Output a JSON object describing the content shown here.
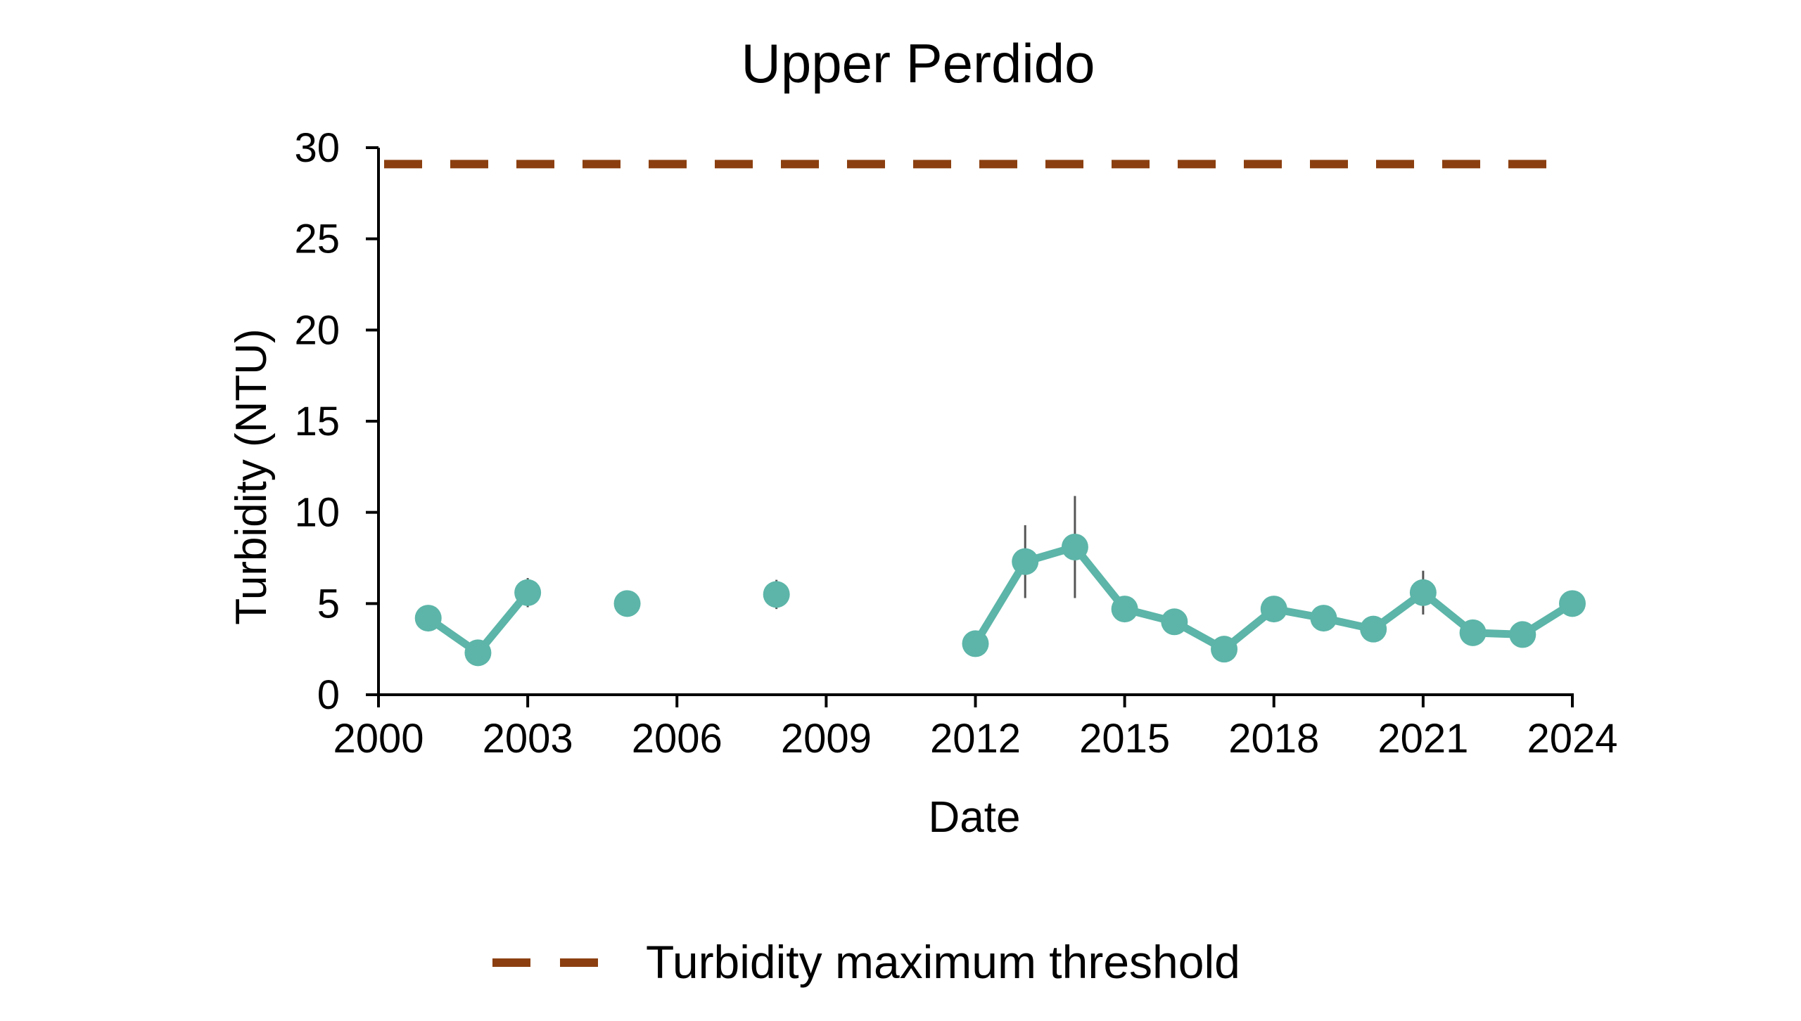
{
  "chart_data": {
    "type": "line",
    "title": "Upper Perdido",
    "xlabel": "Date",
    "ylabel": "Turbidity (NTU)",
    "xlim": [
      2000,
      2024
    ],
    "ylim": [
      0,
      30
    ],
    "x_ticks": [
      2000,
      2003,
      2006,
      2009,
      2012,
      2015,
      2018,
      2021,
      2024
    ],
    "y_ticks": [
      0,
      5,
      10,
      15,
      20,
      25,
      30
    ],
    "grid": false,
    "legend_position": "bottom",
    "series": [
      {
        "color": "#5cb5a8",
        "marker": "circle",
        "x": [
          2001,
          2002,
          2003,
          2005,
          2008,
          2012,
          2013,
          2014,
          2015,
          2016,
          2017,
          2018,
          2019,
          2020,
          2021,
          2022,
          2023,
          2024
        ],
        "y": [
          4.2,
          2.3,
          5.6,
          5.0,
          5.5,
          2.8,
          7.3,
          8.1,
          4.7,
          4.0,
          2.5,
          4.7,
          4.2,
          3.6,
          5.6,
          3.4,
          3.3,
          5.0
        ],
        "y_err": [
          0.2,
          0.2,
          0.8,
          0.2,
          0.8,
          0.2,
          2.0,
          2.8,
          0.3,
          0.3,
          0.2,
          0.3,
          0.2,
          0.2,
          1.2,
          0.2,
          0.2,
          0.2
        ],
        "connected_segments": [
          [
            2001,
            2003
          ],
          [
            2012,
            2024
          ]
        ]
      },
      {
        "name": "Turbidity maximum threshold",
        "color": "#8b3f10",
        "style": "dashed",
        "x": [
          2000,
          2024
        ],
        "y": [
          29.1,
          29.1
        ]
      }
    ]
  }
}
